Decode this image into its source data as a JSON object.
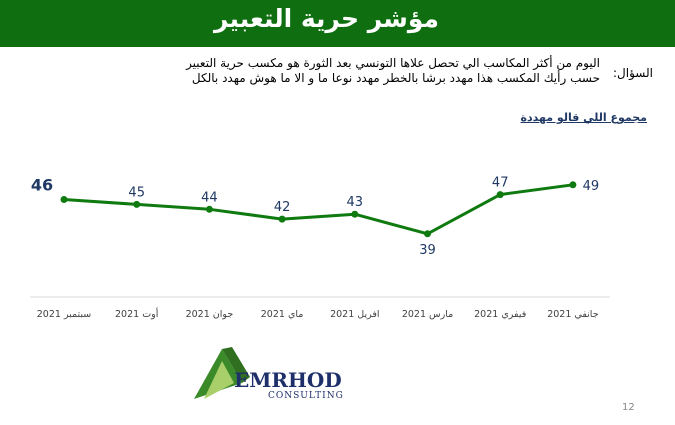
{
  "header": {
    "title": "مؤشر حرية التعبير"
  },
  "question": {
    "label": "السؤال:",
    "line1": "اليوم من أكثر المكاسب الي تحصل علاها التونسي بعد الثورة هو مكسب حرية التعبير",
    "line2": "حسب رأيك المكسب هذا مهدد برشا بالخطر مهدد نوعا ما و الا ما هوش مهدد بالكل"
  },
  "chart_subtitle": "مجموع اللي قالو مهددة",
  "chart_data": {
    "type": "line",
    "categories": [
      "سبتمبر 2021",
      "أوت 2021",
      "جوان 2021",
      "ماي 2021",
      "افريل 2021",
      "مارس 2021",
      "فيفري 2021",
      "جانفي 2021"
    ],
    "values": [
      46,
      45,
      44,
      42,
      43,
      39,
      47,
      49
    ],
    "ylim": [
      0,
      60
    ],
    "grid": false,
    "legend": "none",
    "colors": {
      "line": "#0f7a10",
      "labels": "#1f3864"
    }
  },
  "logo": {
    "text": "EMRHOD",
    "subtext": "CONSULTING"
  },
  "page_number": "12"
}
